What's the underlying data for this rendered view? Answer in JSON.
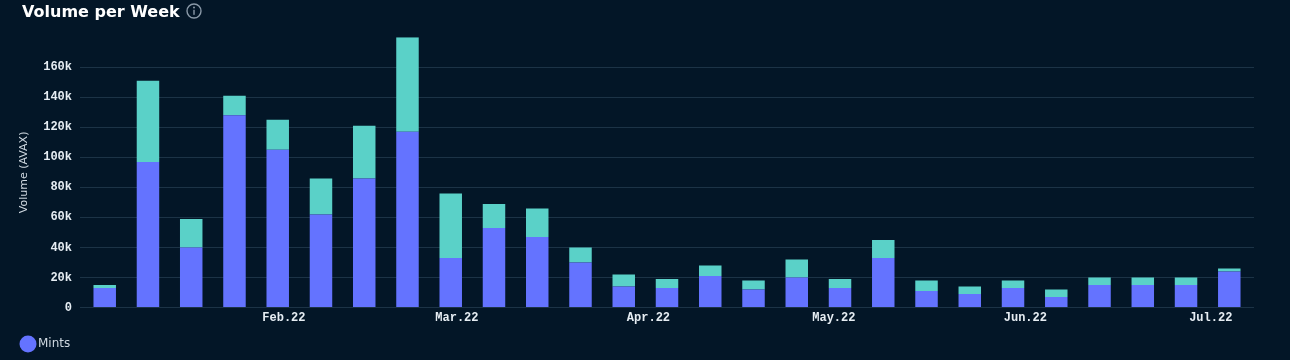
{
  "chart_data": {
    "type": "bar",
    "title": "Volume per Week",
    "ylabel": "Volume (AVAX)",
    "stacked": true,
    "grid": "y",
    "legend": "bottom left",
    "x": [
      "2022-01-03",
      "2022-01-10",
      "2022-01-17",
      "2022-01-24",
      "2022-01-31",
      "2022-02-07",
      "2022-02-14",
      "2022-02-21",
      "2022-02-28",
      "2022-03-07",
      "2022-03-14",
      "2022-03-21",
      "2022-03-28",
      "2022-04-04",
      "2022-04-11",
      "2022-04-18",
      "2022-04-25",
      "2022-05-02",
      "2022-05-09",
      "2022-05-16",
      "2022-05-23",
      "2022-05-30",
      "2022-06-06",
      "2022-06-13",
      "2022-06-20",
      "2022-06-27",
      "2022-07-04"
    ],
    "xlim": [
      "2021-12-30",
      "2022-07-08"
    ],
    "xticks": [
      {
        "value": "2022-02-01",
        "label": "Feb.22"
      },
      {
        "value": "2022-03-01",
        "label": "Mar.22"
      },
      {
        "value": "2022-04-01",
        "label": "Apr.22"
      },
      {
        "value": "2022-05-01",
        "label": "May.22"
      },
      {
        "value": "2022-06-01",
        "label": "Jun.22"
      },
      {
        "value": "2022-07-01",
        "label": "Jul.22"
      }
    ],
    "ylim": [
      0,
      180000
    ],
    "yticks": [
      {
        "value": 0,
        "label": "0"
      },
      {
        "value": 20000,
        "label": "20k"
      },
      {
        "value": 40000,
        "label": "40k"
      },
      {
        "value": 60000,
        "label": "60k"
      },
      {
        "value": 80000,
        "label": "80k"
      },
      {
        "value": 100000,
        "label": "100k"
      },
      {
        "value": 120000,
        "label": "120k"
      },
      {
        "value": 140000,
        "label": "140k"
      },
      {
        "value": 160000,
        "label": "160k"
      }
    ],
    "series": [
      {
        "name": "Mints",
        "color": "#6473ff",
        "values": [
          13000,
          97000,
          40000,
          128000,
          105000,
          62000,
          86000,
          117000,
          33000,
          53000,
          47000,
          30000,
          14000,
          13000,
          21000,
          12000,
          20000,
          13000,
          33000,
          11000,
          9000,
          13000,
          7000,
          15000,
          15000,
          15000,
          24000
        ]
      },
      {
        "color": "#5ad1c8",
        "values": [
          2000,
          54000,
          19000,
          13000,
          20000,
          24000,
          35000,
          63000,
          43000,
          16000,
          19000,
          10000,
          8000,
          6000,
          7000,
          6000,
          12000,
          6000,
          12000,
          7000,
          5000,
          5000,
          5000,
          5000,
          5000,
          5000,
          2000
        ]
      }
    ]
  }
}
